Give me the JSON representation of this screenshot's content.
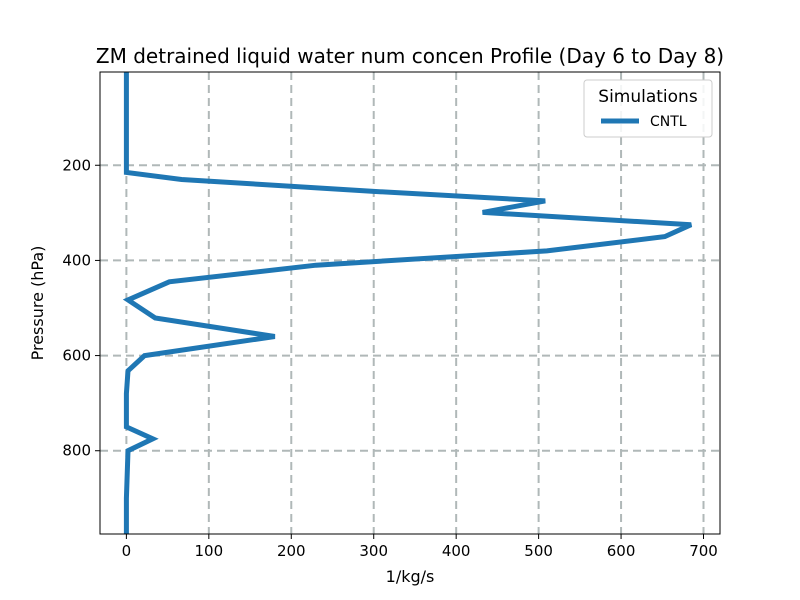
{
  "chart_data": {
    "type": "line",
    "title": "ZM detrained liquid water num concen Profile (Day 6 to Day 8)",
    "xlabel": "1/kg/s",
    "ylabel": "Pressure (hPa)",
    "xlim": [
      -32,
      720
    ],
    "ylim": [
      975,
      4
    ],
    "y_inverted": true,
    "grid": true,
    "legend": {
      "title": "Simulations",
      "placement": "top-right"
    },
    "x_ticks": [
      0,
      100,
      200,
      300,
      400,
      500,
      600,
      700
    ],
    "y_ticks": [
      200,
      400,
      600,
      800
    ],
    "x_tick_labels": [
      "0",
      "100",
      "200",
      "300",
      "400",
      "500",
      "600",
      "700"
    ],
    "y_tick_labels": [
      "200",
      "400",
      "600",
      "800"
    ],
    "colors": {
      "series": "#1f77b4",
      "grid": "#b0b8b8"
    },
    "series": [
      {
        "name": "CNTL",
        "x": [
          0,
          0,
          0,
          0,
          0,
          0,
          67,
          300,
          508,
          432,
          685,
          653,
          510,
          230,
          52,
          2,
          35,
          180,
          22,
          2,
          0,
          0,
          32,
          2,
          0,
          0
        ],
        "y": [
          3.6,
          50,
          100,
          150,
          200,
          215,
          230,
          255,
          275,
          299,
          325,
          350,
          380,
          410,
          445,
          483,
          521,
          560,
          600,
          632,
          680,
          750,
          775,
          800,
          900,
          975
        ]
      }
    ]
  }
}
